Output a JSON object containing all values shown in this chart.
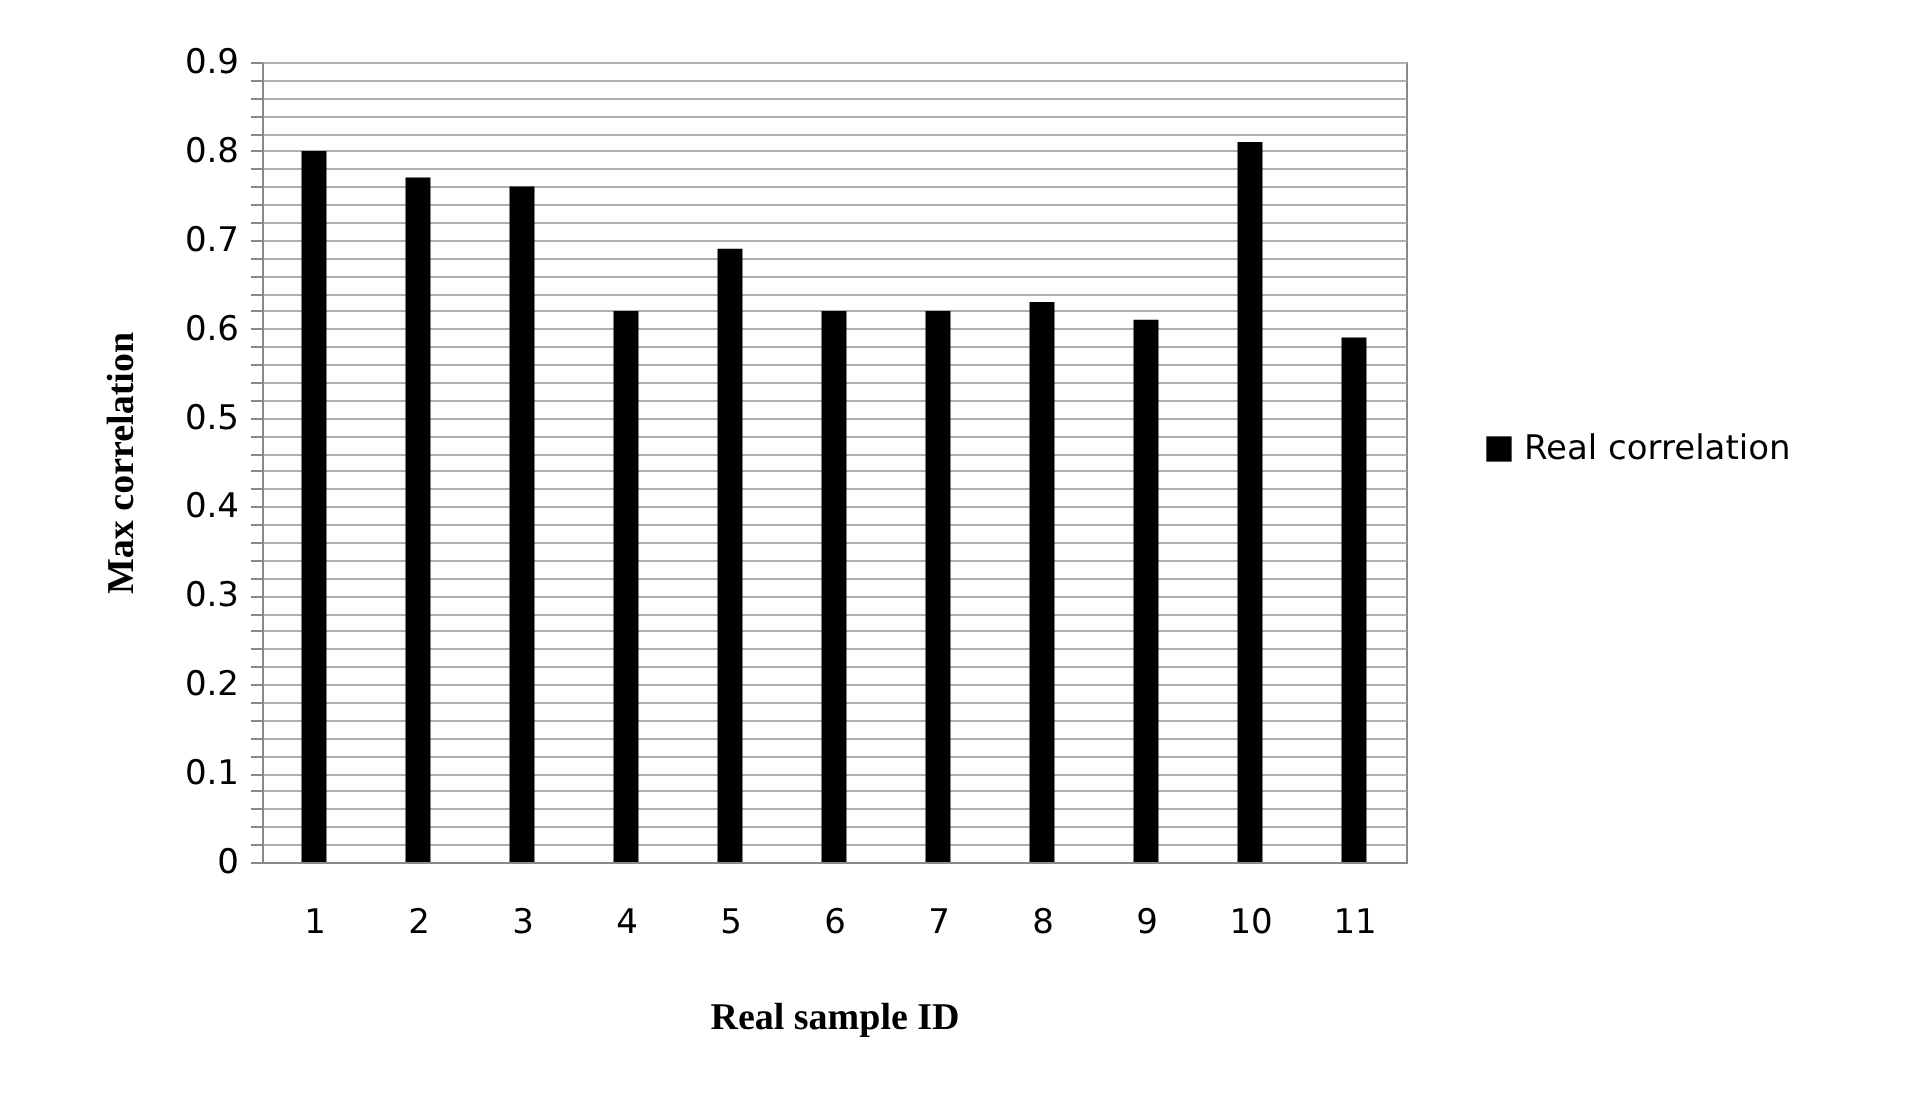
{
  "chart_data": {
    "type": "bar",
    "xlabel": "Real sample ID",
    "ylabel": "Max correlation",
    "categories": [
      "1",
      "2",
      "3",
      "4",
      "5",
      "6",
      "7",
      "8",
      "9",
      "10",
      "11"
    ],
    "series": [
      {
        "name": "Real correlation",
        "color": "#000000",
        "values": [
          0.8,
          0.77,
          0.76,
          0.62,
          0.69,
          0.62,
          0.62,
          0.63,
          0.61,
          0.81,
          0.59
        ]
      }
    ],
    "ylim": [
      0,
      0.9
    ],
    "yticks": [
      0,
      {
        "value": 0.02,
        "label": null
      },
      {
        "value": 0.04,
        "label": null
      },
      {
        "value": 0.06,
        "label": null
      },
      {
        "value": 0.08,
        "label": null
      },
      0.1,
      {
        "value": 0.12,
        "label": null
      },
      {
        "value": 0.14,
        "label": null
      },
      {
        "value": 0.16,
        "label": null
      },
      {
        "value": 0.18,
        "label": null
      },
      0.2,
      {
        "value": 0.22,
        "label": null
      },
      {
        "value": 0.24,
        "label": null
      },
      {
        "value": 0.26,
        "label": null
      },
      {
        "value": 0.28,
        "label": null
      },
      0.3,
      {
        "value": 0.32,
        "label": null
      },
      {
        "value": 0.34,
        "label": null
      },
      {
        "value": 0.36,
        "label": null
      },
      {
        "value": 0.38,
        "label": null
      },
      0.4,
      {
        "value": 0.42,
        "label": null
      },
      {
        "value": 0.44,
        "label": null
      },
      {
        "value": 0.46,
        "label": null
      },
      {
        "value": 0.48,
        "label": null
      },
      0.5,
      {
        "value": 0.52,
        "label": null
      },
      {
        "value": 0.54,
        "label": null
      },
      {
        "value": 0.56,
        "label": null
      },
      {
        "value": 0.58,
        "label": null
      },
      0.6,
      {
        "value": 0.62,
        "label": null
      },
      {
        "value": 0.64,
        "label": null
      },
      {
        "value": 0.66,
        "label": null
      },
      {
        "value": 0.68,
        "label": null
      },
      0.7,
      {
        "value": 0.72,
        "label": null
      },
      {
        "value": 0.74,
        "label": null
      },
      {
        "value": 0.76,
        "label": null
      },
      {
        "value": 0.78,
        "label": null
      },
      0.8,
      {
        "value": 0.82,
        "label": null
      },
      {
        "value": 0.84,
        "label": null
      },
      {
        "value": 0.86,
        "label": null
      },
      {
        "value": 0.88,
        "label": null
      },
      0.9
    ],
    "grid": true,
    "legend": "right"
  }
}
